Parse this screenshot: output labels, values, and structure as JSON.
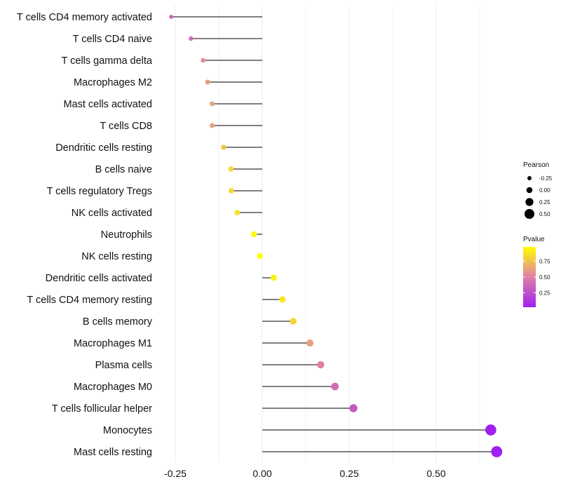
{
  "chart_data": {
    "type": "lollipop",
    "title": "",
    "xlabel": "",
    "ylabel": "",
    "xlim": [
      -0.3,
      0.72
    ],
    "xticks": [
      -0.25,
      0.0,
      0.25,
      0.5
    ],
    "xtick_labels": [
      "-0.25",
      "0.00",
      "0.25",
      "0.50"
    ],
    "categories": [
      "T cells CD4 memory activated",
      "T cells CD4 naive",
      "T cells gamma delta",
      "Macrophages M2",
      "Mast cells activated",
      "T cells CD8",
      "Dendritic cells resting",
      "B cells naive",
      "T cells regulatory  Tregs ",
      "NK cells activated",
      "Neutrophils",
      "NK cells resting",
      "Dendritic cells activated",
      "T cells CD4 memory resting",
      "B cells memory",
      "Macrophages M1",
      "Plasma cells",
      "Macrophages M0",
      "T cells follicular helper",
      "Monocytes",
      "Mast cells resting"
    ],
    "pearson": [
      -0.262,
      -0.205,
      -0.17,
      -0.157,
      -0.144,
      -0.144,
      -0.111,
      -0.09,
      -0.089,
      -0.072,
      -0.024,
      -0.007,
      0.033,
      0.058,
      0.089,
      0.137,
      0.168,
      0.209,
      0.262,
      0.657,
      0.674
    ],
    "pvalue": [
      0.36,
      0.4,
      0.55,
      0.6,
      0.63,
      0.63,
      0.76,
      0.83,
      0.83,
      0.87,
      0.95,
      0.98,
      0.93,
      0.89,
      0.83,
      0.62,
      0.5,
      0.41,
      0.31,
      0.02,
      0.02
    ],
    "legend_size": {
      "title": "Pearson",
      "labels": [
        "-0.25",
        "0.00",
        "0.25",
        "0.50"
      ],
      "values": [
        -0.25,
        0.0,
        0.25,
        0.5
      ]
    },
    "legend_color": {
      "title": "Pvalue",
      "labels": [
        "0.75",
        "0.50",
        "0.25"
      ],
      "values": [
        0.75,
        0.5,
        0.25
      ],
      "range": [
        0.02,
        0.98
      ],
      "low_color": "#a020f0",
      "high_color": "#ffff00"
    },
    "colors": {
      "gridline": "#ebebeb",
      "segment": "#333333"
    }
  }
}
